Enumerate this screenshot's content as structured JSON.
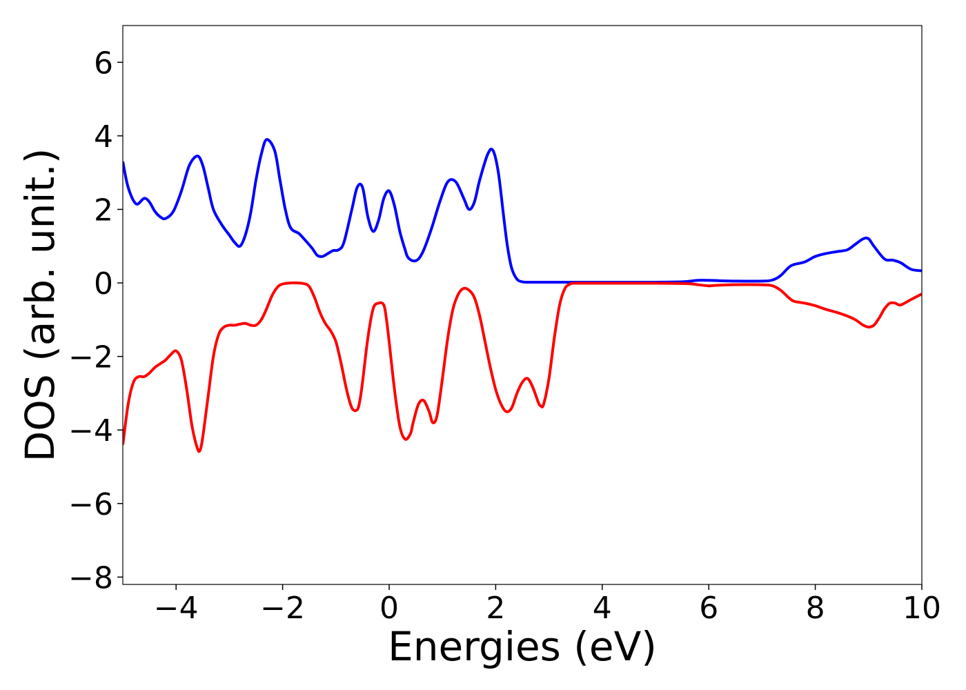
{
  "chart_data": {
    "type": "line",
    "title": "",
    "xlabel": "Energies (eV)",
    "ylabel": "DOS (arb. unit.)",
    "xlim": [
      -5,
      10
    ],
    "ylim": [
      -8.2,
      7.0
    ],
    "xticks": [
      -4,
      -2,
      0,
      2,
      4,
      6,
      8,
      10
    ],
    "xtick_labels": [
      "−4",
      "−2",
      "0",
      "2",
      "4",
      "6",
      "8",
      "10"
    ],
    "yticks": [
      -8,
      -6,
      -4,
      -2,
      0,
      2,
      4,
      6
    ],
    "ytick_labels": [
      "−8",
      "−6",
      "−4",
      "−2",
      "0",
      "2",
      "4",
      "6"
    ],
    "grid": false,
    "legend": "none",
    "series": [
      {
        "color": "#0000ff",
        "x": [
          -5.0,
          -4.9,
          -4.75,
          -4.6,
          -4.5,
          -4.4,
          -4.3,
          -4.2,
          -4.05,
          -3.9,
          -3.75,
          -3.6,
          -3.5,
          -3.4,
          -3.3,
          -3.15,
          -3.0,
          -2.9,
          -2.8,
          -2.7,
          -2.6,
          -2.5,
          -2.4,
          -2.3,
          -2.15,
          -2.05,
          -1.95,
          -1.85,
          -1.7,
          -1.6,
          -1.45,
          -1.35,
          -1.25,
          -1.15,
          -1.05,
          -0.95,
          -0.85,
          -0.7,
          -0.6,
          -0.5,
          -0.4,
          -0.3,
          -0.2,
          -0.1,
          0.0,
          0.1,
          0.2,
          0.3,
          0.35,
          0.45,
          0.55,
          0.65,
          0.8,
          0.95,
          1.1,
          1.25,
          1.4,
          1.5,
          1.6,
          1.7,
          1.85,
          1.95,
          2.05,
          2.15,
          2.22,
          2.3,
          2.4,
          2.5,
          2.6,
          2.7,
          2.8,
          2.9,
          3.0,
          3.5,
          4.0,
          4.5,
          5.0,
          5.5,
          5.8,
          6.0,
          6.2,
          6.5,
          7.0,
          7.2,
          7.35,
          7.5,
          7.6,
          7.8,
          8.0,
          8.2,
          8.4,
          8.6,
          8.75,
          8.9,
          9.0,
          9.1,
          9.3,
          9.45,
          9.6,
          9.8,
          10.0
        ],
        "y": [
          3.3,
          2.6,
          2.15,
          2.3,
          2.2,
          1.95,
          1.8,
          1.75,
          1.95,
          2.5,
          3.2,
          3.45,
          3.2,
          2.6,
          2.0,
          1.6,
          1.3,
          1.1,
          1.0,
          1.3,
          1.9,
          2.8,
          3.5,
          3.9,
          3.6,
          2.8,
          2.0,
          1.5,
          1.35,
          1.2,
          0.95,
          0.75,
          0.72,
          0.8,
          0.88,
          0.9,
          1.1,
          2.0,
          2.6,
          2.6,
          1.8,
          1.4,
          1.7,
          2.3,
          2.5,
          2.1,
          1.4,
          0.9,
          0.7,
          0.6,
          0.65,
          0.9,
          1.5,
          2.2,
          2.75,
          2.75,
          2.3,
          2.0,
          2.2,
          2.8,
          3.5,
          3.6,
          3.0,
          1.8,
          1.0,
          0.4,
          0.1,
          0.03,
          0.02,
          0.02,
          0.02,
          0.02,
          0.02,
          0.02,
          0.02,
          0.02,
          0.02,
          0.03,
          0.07,
          0.07,
          0.06,
          0.05,
          0.05,
          0.08,
          0.2,
          0.42,
          0.5,
          0.57,
          0.72,
          0.8,
          0.85,
          0.9,
          1.05,
          1.2,
          1.2,
          1.0,
          0.65,
          0.62,
          0.55,
          0.37,
          0.33
        ]
      },
      {
        "color": "#ff0000",
        "x": [
          -5.0,
          -4.9,
          -4.8,
          -4.7,
          -4.6,
          -4.5,
          -4.4,
          -4.3,
          -4.2,
          -4.1,
          -4.0,
          -3.9,
          -3.8,
          -3.7,
          -3.6,
          -3.55,
          -3.5,
          -3.4,
          -3.3,
          -3.2,
          -3.1,
          -3.0,
          -2.9,
          -2.8,
          -2.7,
          -2.6,
          -2.5,
          -2.4,
          -2.3,
          -2.2,
          -2.1,
          -2.0,
          -1.8,
          -1.6,
          -1.5,
          -1.4,
          -1.3,
          -1.2,
          -1.1,
          -1.0,
          -0.9,
          -0.8,
          -0.7,
          -0.6,
          -0.55,
          -0.5,
          -0.4,
          -0.3,
          -0.2,
          -0.1,
          -0.05,
          0.0,
          0.1,
          0.2,
          0.3,
          0.4,
          0.45,
          0.55,
          0.65,
          0.75,
          0.82,
          0.9,
          1.0,
          1.1,
          1.2,
          1.3,
          1.4,
          1.5,
          1.6,
          1.7,
          1.8,
          1.9,
          2.0,
          2.1,
          2.2,
          2.3,
          2.4,
          2.5,
          2.6,
          2.7,
          2.8,
          2.85,
          2.9,
          3.0,
          3.1,
          3.2,
          3.3,
          3.4,
          3.5,
          4.0,
          5.0,
          5.6,
          5.8,
          6.0,
          6.1,
          6.4,
          7.0,
          7.2,
          7.35,
          7.5,
          7.6,
          7.8,
          8.0,
          8.2,
          8.4,
          8.6,
          8.75,
          8.9,
          9.0,
          9.1,
          9.2,
          9.3,
          9.4,
          9.5,
          9.6,
          9.8,
          10.0
        ],
        "y": [
          -4.4,
          -3.3,
          -2.7,
          -2.55,
          -2.55,
          -2.45,
          -2.3,
          -2.2,
          -2.1,
          -1.95,
          -1.85,
          -2.1,
          -2.9,
          -3.9,
          -4.5,
          -4.55,
          -4.2,
          -3.1,
          -2.0,
          -1.4,
          -1.2,
          -1.15,
          -1.15,
          -1.12,
          -1.1,
          -1.15,
          -1.15,
          -1.0,
          -0.7,
          -0.35,
          -0.12,
          -0.03,
          0.0,
          -0.02,
          -0.1,
          -0.4,
          -0.8,
          -1.1,
          -1.3,
          -1.6,
          -2.2,
          -2.9,
          -3.4,
          -3.45,
          -3.2,
          -2.7,
          -1.5,
          -0.7,
          -0.55,
          -0.6,
          -1.0,
          -1.6,
          -2.9,
          -3.9,
          -4.25,
          -4.1,
          -3.8,
          -3.3,
          -3.2,
          -3.5,
          -3.8,
          -3.6,
          -2.6,
          -1.5,
          -0.7,
          -0.3,
          -0.15,
          -0.2,
          -0.4,
          -0.9,
          -1.6,
          -2.3,
          -2.9,
          -3.3,
          -3.5,
          -3.4,
          -3.0,
          -2.7,
          -2.6,
          -2.85,
          -3.25,
          -3.35,
          -3.3,
          -2.6,
          -1.5,
          -0.6,
          -0.15,
          -0.03,
          -0.01,
          -0.01,
          -0.01,
          -0.02,
          -0.05,
          -0.08,
          -0.07,
          -0.05,
          -0.05,
          -0.08,
          -0.2,
          -0.4,
          -0.5,
          -0.55,
          -0.62,
          -0.72,
          -0.8,
          -0.9,
          -1.0,
          -1.15,
          -1.2,
          -1.15,
          -0.95,
          -0.7,
          -0.55,
          -0.55,
          -0.6,
          -0.45,
          -0.3
        ]
      }
    ]
  }
}
